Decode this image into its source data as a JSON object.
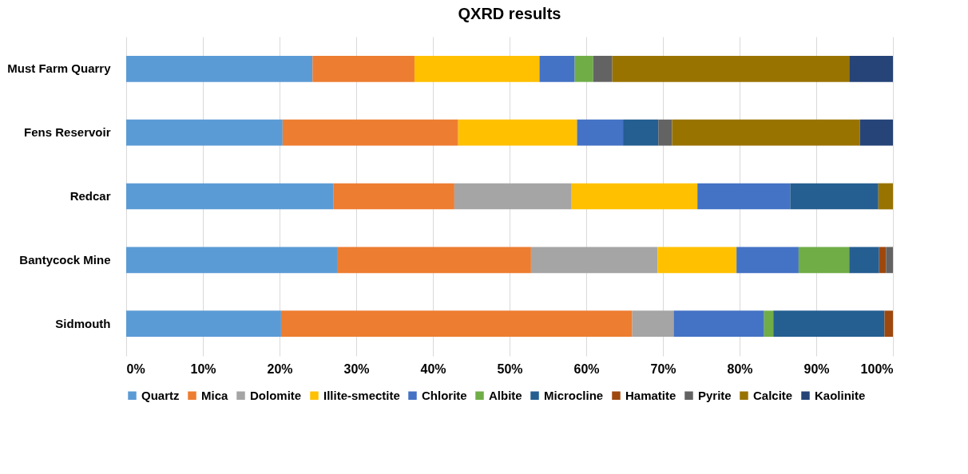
{
  "chart_data": {
    "type": "bar",
    "orientation": "horizontal",
    "stacked": true,
    "title": "QXRD results",
    "categories": [
      "Must Farm Quarry",
      "Fens Reservoir",
      "Redcar",
      "Bantycock Mine",
      "Sidmouth"
    ],
    "series": [
      {
        "name": "Quartz",
        "color": "#5b9bd5",
        "values": [
          24.3,
          20.4,
          27.0,
          27.5,
          20.2
        ]
      },
      {
        "name": "Mica",
        "color": "#ed7d31",
        "values": [
          13.3,
          22.9,
          15.8,
          25.3,
          45.8
        ]
      },
      {
        "name": "Dolomite",
        "color": "#a5a5a5",
        "values": [
          null,
          null,
          15.3,
          16.5,
          5.4
        ]
      },
      {
        "name": "Illite-smectite",
        "color": "#ffc000",
        "values": [
          16.3,
          15.5,
          16.4,
          10.3,
          null
        ]
      },
      {
        "name": "Chlorite",
        "color": "#4472c4",
        "values": [
          4.6,
          6.0,
          12.1,
          8.1,
          11.8
        ]
      },
      {
        "name": "Albite",
        "color": "#70ad47",
        "values": [
          2.4,
          null,
          null,
          6.6,
          1.2
        ]
      },
      {
        "name": "Microcline",
        "color": "#255e91",
        "values": [
          null,
          4.6,
          11.5,
          3.9,
          14.5
        ]
      },
      {
        "name": "Hamatite",
        "color": "#9e480e",
        "values": [
          null,
          null,
          null,
          0.9,
          1.1
        ]
      },
      {
        "name": "Pyrite",
        "color": "#636363",
        "values": [
          2.5,
          1.8,
          null,
          0.9,
          null
        ]
      },
      {
        "name": "Calcite",
        "color": "#997300",
        "values": [
          30.9,
          24.5,
          1.9,
          null,
          null
        ]
      },
      {
        "name": "Kaolinite",
        "color": "#264478",
        "values": [
          5.7,
          4.3,
          null,
          null,
          null
        ]
      }
    ],
    "xlim": [
      0,
      100
    ],
    "xticks": [
      {
        "value": 0,
        "label": "0%"
      },
      {
        "value": 10,
        "label": "10%"
      },
      {
        "value": 20,
        "label": "20%"
      },
      {
        "value": 30,
        "label": "30%"
      },
      {
        "value": 40,
        "label": "40%"
      },
      {
        "value": 50,
        "label": "50%"
      },
      {
        "value": 60,
        "label": "60%"
      },
      {
        "value": 70,
        "label": "70%"
      },
      {
        "value": 80,
        "label": "80%"
      },
      {
        "value": 90,
        "label": "90%"
      },
      {
        "value": 100,
        "label": "100%"
      }
    ],
    "grid": "x",
    "legend": "bottom"
  }
}
